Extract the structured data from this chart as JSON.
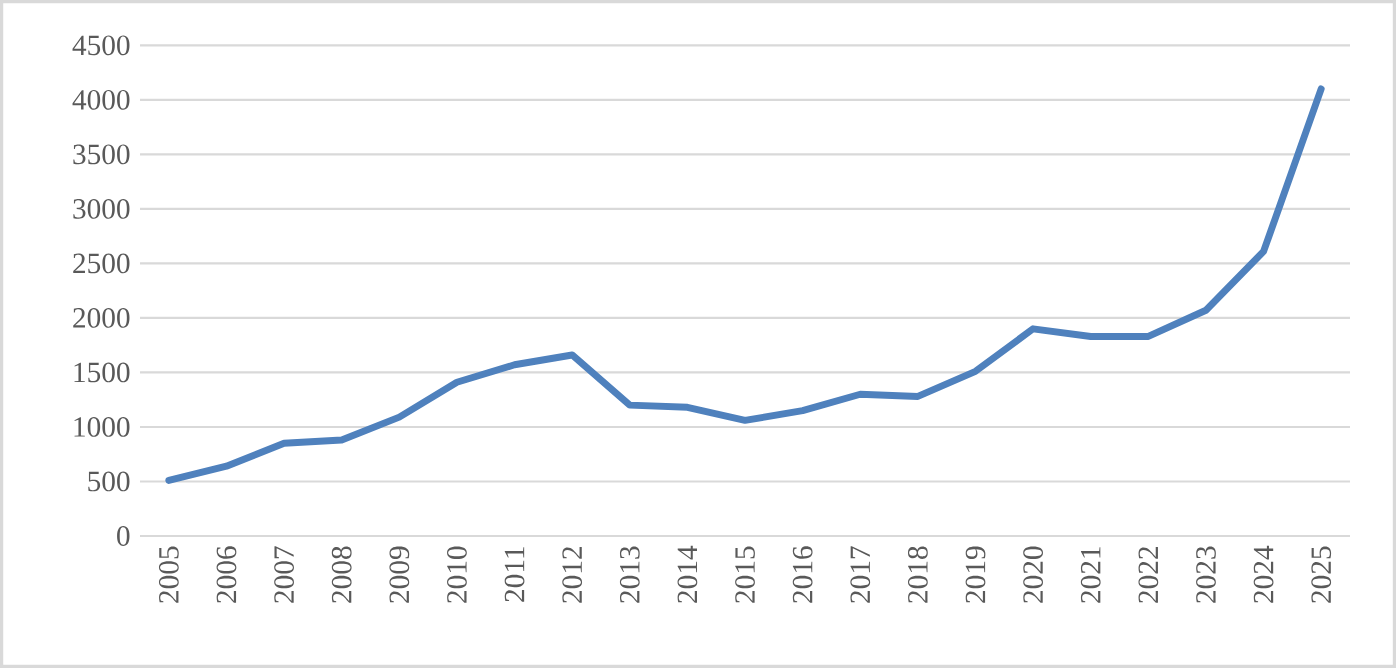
{
  "chart_data": {
    "type": "line",
    "categories": [
      "2005",
      "2006",
      "2007",
      "2008",
      "2009",
      "2010",
      "2011",
      "2012",
      "2013",
      "2014",
      "2015",
      "2016",
      "2017",
      "2018",
      "2019",
      "2020",
      "2021",
      "2022",
      "2023",
      "2024",
      "2025"
    ],
    "series": [
      {
        "color": "#4f81bd",
        "values": [
          510,
          640,
          850,
          880,
          1090,
          1410,
          1570,
          1660,
          1200,
          1180,
          1060,
          1150,
          1300,
          1280,
          1510,
          1900,
          1830,
          1830,
          2070,
          2610,
          4100
        ]
      }
    ],
    "ylim": [
      0,
      4500
    ],
    "yticks": [
      0,
      500,
      1000,
      1500,
      2000,
      2500,
      3000,
      3500,
      4000,
      4500
    ],
    "grid": "y",
    "line_style": "solid"
  }
}
